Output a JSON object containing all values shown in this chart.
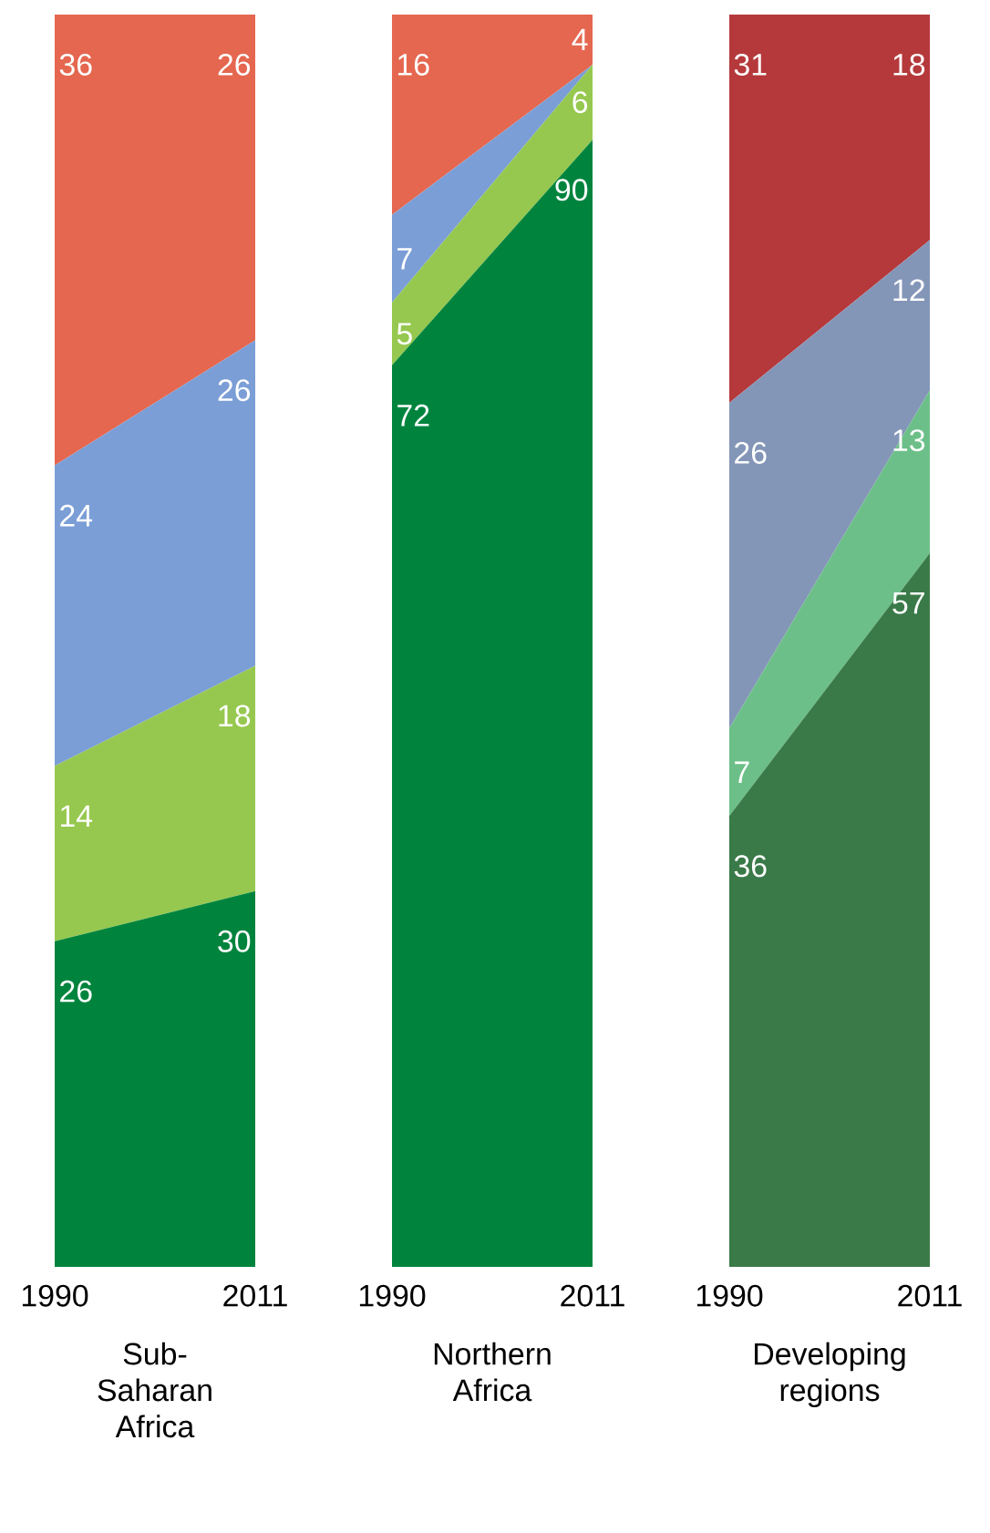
{
  "chart_data": [
    {
      "type": "area",
      "stacked": true,
      "categories": [
        "1990",
        "2011"
      ],
      "xlabel": "Sub-Saharan Africa",
      "series": [
        {
          "color": "#00843d",
          "values": [
            26,
            30
          ],
          "value_labels": [
            "26",
            "30"
          ]
        },
        {
          "color": "#96c84f",
          "values": [
            14,
            18
          ],
          "value_labels": [
            "14",
            "18"
          ]
        },
        {
          "color": "#7b9ed6",
          "values": [
            24,
            26
          ],
          "value_labels": [
            "24",
            "26"
          ]
        },
        {
          "color": "#e5674f",
          "values": [
            36,
            26
          ],
          "value_labels": [
            "36",
            "26"
          ]
        }
      ]
    },
    {
      "type": "area",
      "stacked": true,
      "categories": [
        "1990",
        "2011"
      ],
      "xlabel": "Northern Africa",
      "series": [
        {
          "color": "#00843d",
          "values": [
            72,
            90
          ],
          "value_labels": [
            "72",
            "90"
          ]
        },
        {
          "color": "#96c84f",
          "values": [
            5,
            6
          ],
          "value_labels": [
            "5",
            "6"
          ]
        },
        {
          "color": "#7b9ed6",
          "values": [
            7,
            0
          ],
          "value_labels": [
            "7",
            null
          ]
        },
        {
          "color": "#e5674f",
          "values": [
            16,
            4
          ],
          "value_labels": [
            "16",
            "4"
          ]
        }
      ]
    },
    {
      "type": "area",
      "stacked": true,
      "categories": [
        "1990",
        "2011"
      ],
      "xlabel": "Developing regions",
      "series": [
        {
          "color": "#3a7a48",
          "values": [
            36,
            57
          ],
          "value_labels": [
            "36",
            "57"
          ]
        },
        {
          "color": "#6cbf88",
          "values": [
            7,
            13
          ],
          "value_labels": [
            "7",
            "13"
          ]
        },
        {
          "color": "#8496b8",
          "values": [
            26,
            12
          ],
          "value_labels": [
            "26",
            "12"
          ]
        },
        {
          "color": "#b5393b",
          "values": [
            31,
            18
          ],
          "value_labels": [
            "31",
            "18"
          ]
        }
      ]
    }
  ]
}
